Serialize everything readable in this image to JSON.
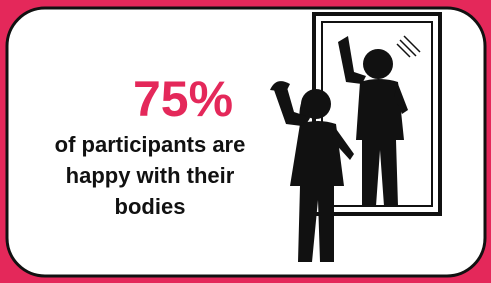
{
  "stat": "75%",
  "caption_lines": [
    "of participants are",
    "happy with their",
    "bodies"
  ]
}
